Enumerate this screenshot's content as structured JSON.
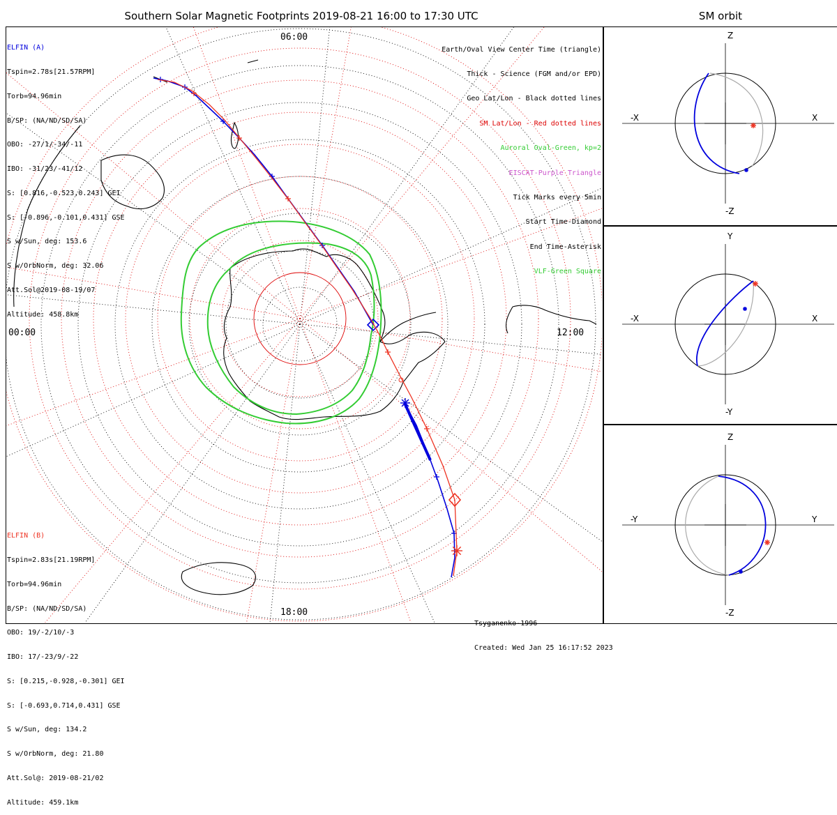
{
  "title": "Southern Solar Magnetic Footprints 2019-08-21 16:00 to 17:30 UTC",
  "orbit_title": "SM orbit",
  "colors": {
    "elfin_a": "#0000dd",
    "elfin_b": "#ee3322",
    "oval": "#33cc33",
    "grid_red": "#dd0000",
    "grid_black": "#000000",
    "eiscat": "#cc55cc",
    "orbit_gray": "#aaaaaa"
  },
  "map": {
    "time_labels": {
      "top": "06:00",
      "left": "00:00",
      "right": "12:00",
      "bottom": "18:00"
    }
  },
  "elfin_a": {
    "name": "ELFIN (A)",
    "lines": [
      "Tspin=2.78s[21.57RPM]",
      "Torb=94.96min",
      "B/SP: (NA/ND/SD/SA)",
      "OBO: -27/1/-34/-11",
      "IBO: -31/23/-41/12",
      "S: [0.816,-0.523,0.243] GEI",
      "S: [-0.896,-0.101,0.431] GSE",
      "S w/Sun, deg: 153.6",
      "S w/OrbNorm, deg: 32.06",
      "Att.Sol@2019-08-19/07",
      "Altitude: 458.8km"
    ]
  },
  "elfin_b": {
    "name": "ELFIN (B)",
    "lines": [
      "Tspin=2.83s[21.19RPM]",
      "Torb=94.96min",
      "B/SP: (NA/ND/SD/SA)",
      "OBO: 19/-2/10/-3",
      "IBO: 17/-23/9/-22",
      "S: [0.215,-0.928,-0.301] GEI",
      "S: [-0.693,0.714,0.431] GSE",
      "S w/Sun, deg: 134.2",
      "S w/OrbNorm, deg: 21.80",
      "Att.Sol@: 2019-08-21/02",
      "Altitude: 459.1km"
    ]
  },
  "legend": [
    {
      "text": "Earth/Oval View Center Time (triangle)",
      "color": "#000000"
    },
    {
      "text": "Thick - Science (FGM and/or EPD)",
      "color": "#000000"
    },
    {
      "text": "Geo Lat/Lon - Black dotted lines",
      "color": "#000000"
    },
    {
      "text": "SM Lat/Lon - Red dotted lines",
      "color": "#dd0000"
    },
    {
      "text": "Auroral Oval-Green, kp=2",
      "color": "#33cc33"
    },
    {
      "text": "EISCAT-Purple Triangle",
      "color": "#cc55cc"
    },
    {
      "text": "Tick Marks every 5min",
      "color": "#000000"
    },
    {
      "text": "Start Time-Diamond",
      "color": "#000000"
    },
    {
      "text": "End Time-Asterisk",
      "color": "#000000"
    },
    {
      "text": "VLF-Green Square",
      "color": "#33cc33"
    }
  ],
  "credits": {
    "model": "Tsyganenko-1996",
    "created": "Created: Wed Jan 25 16:17:52 2023"
  },
  "panels": [
    {
      "top": "Z",
      "bottom": "-Z",
      "left": "-X",
      "right": "X"
    },
    {
      "top": "Y",
      "bottom": "-Y",
      "left": "-X",
      "right": "X"
    },
    {
      "top": "Z",
      "bottom": "-Z",
      "left": "-Y",
      "right": "Y"
    }
  ]
}
